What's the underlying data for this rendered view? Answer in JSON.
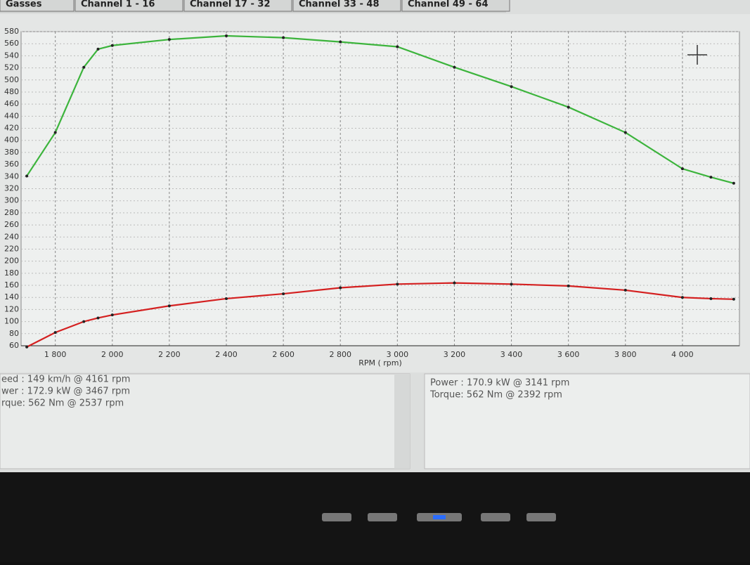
{
  "tabs": [
    "Gasses",
    "Channel 1 - 16",
    "Channel 17 - 32",
    "Channel 33 - 48",
    "Channel 49 - 64"
  ],
  "chart_data": {
    "type": "line",
    "x_label": "RPM ( rpm)",
    "x": [
      1700,
      1800,
      1900,
      1950,
      2000,
      2200,
      2400,
      2600,
      2800,
      3000,
      3200,
      3400,
      3600,
      3800,
      4000,
      4100,
      4180
    ],
    "series": [
      {
        "color": "#3cb43c",
        "values": [
          341,
          413,
          521,
          551,
          557,
          567,
          573,
          570,
          563,
          555,
          521,
          489,
          455,
          413,
          353,
          339,
          329
        ]
      },
      {
        "color": "#d42020",
        "values": [
          58,
          82,
          100,
          106,
          111,
          126,
          138,
          146,
          156,
          162,
          164,
          162,
          159,
          152,
          140,
          138,
          137
        ]
      }
    ],
    "xlim": [
      1680,
      4200
    ],
    "xticks": [
      {
        "value": 1800,
        "label": "1 800"
      },
      {
        "value": 2000,
        "label": "2 000"
      },
      {
        "value": 2200,
        "label": "2 200"
      },
      {
        "value": 2400,
        "label": "2 400"
      },
      {
        "value": 2600,
        "label": "2 600"
      },
      {
        "value": 2800,
        "label": "2 800"
      },
      {
        "value": 3000,
        "label": "3 000"
      },
      {
        "value": 3200,
        "label": "3 200"
      },
      {
        "value": 3400,
        "label": "3 400"
      },
      {
        "value": 3600,
        "label": "3 600"
      },
      {
        "value": 3800,
        "label": "3 800"
      },
      {
        "value": 4000,
        "label": "4 000"
      }
    ],
    "ylim": [
      60,
      580
    ],
    "yticks": [
      60,
      80,
      100,
      120,
      140,
      160,
      180,
      200,
      220,
      240,
      260,
      280,
      300,
      320,
      340,
      360,
      380,
      400,
      420,
      440,
      460,
      480,
      500,
      520,
      540,
      560,
      580
    ],
    "grid": true
  },
  "left_panel": [
    "eed : 149 km/h @ 4161 rpm",
    "wer : 172.9 kW @ 3467 rpm",
    "rque: 562 Nm @ 2537 rpm"
  ],
  "right_panel": [
    "Power : 170.9 kW @ 3141 rpm",
    "Torque: 562 Nm @ 2392 rpm"
  ]
}
